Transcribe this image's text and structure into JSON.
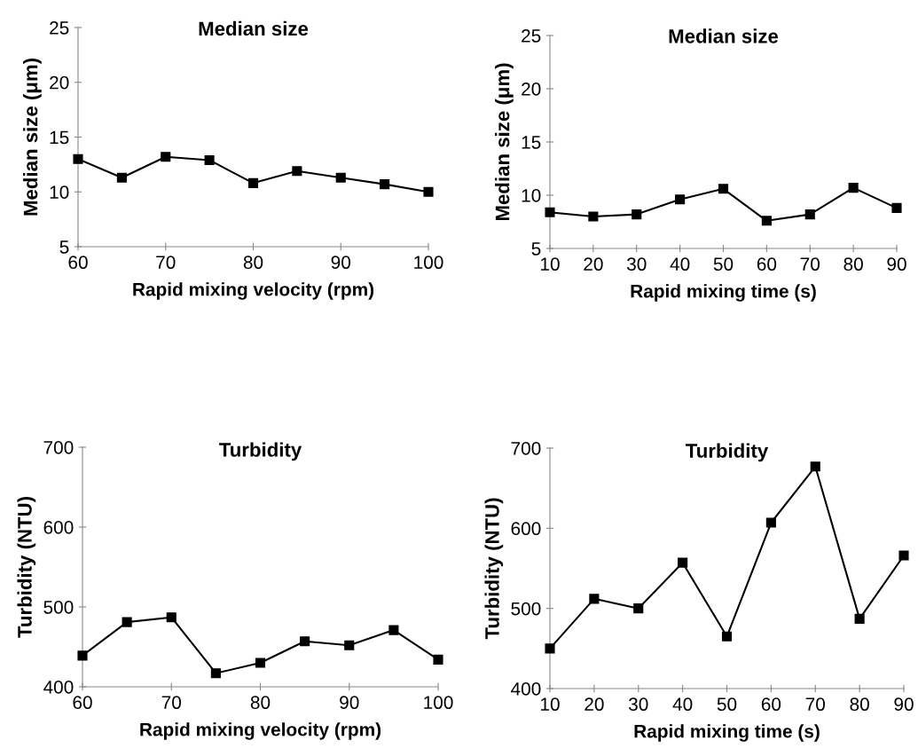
{
  "chart_data": [
    {
      "type": "line",
      "title": "Median size",
      "xlabel": "Rapid mixing velocity (rpm)",
      "ylabel": "Median size (μm)",
      "x": [
        60,
        65,
        70,
        75,
        80,
        85,
        90,
        95,
        100
      ],
      "series": [
        {
          "color": "#000000",
          "values": [
            13.0,
            11.3,
            13.2,
            12.9,
            10.8,
            11.9,
            11.3,
            10.7,
            10.0
          ]
        }
      ],
      "xlim": [
        60,
        100
      ],
      "xticks": [
        60,
        70,
        80,
        90,
        100
      ],
      "ylim": [
        5,
        25
      ],
      "yticks": [
        5,
        10,
        15,
        20,
        25
      ],
      "marker": "square",
      "line_style": "solid",
      "grid": false
    },
    {
      "type": "line",
      "title": "Median size",
      "xlabel": "Rapid mixing time (s)",
      "ylabel": "Median size (μm)",
      "x": [
        10,
        20,
        30,
        40,
        50,
        60,
        70,
        80,
        90
      ],
      "series": [
        {
          "color": "#000000",
          "values": [
            8.4,
            8.0,
            8.2,
            9.6,
            10.6,
            7.6,
            8.2,
            10.7,
            8.8
          ]
        }
      ],
      "xlim": [
        10,
        90
      ],
      "xticks": [
        10,
        20,
        30,
        40,
        50,
        60,
        70,
        80,
        90
      ],
      "ylim": [
        5,
        25
      ],
      "yticks": [
        5,
        10,
        15,
        20,
        25
      ],
      "marker": "square",
      "line_style": "solid",
      "grid": false
    },
    {
      "type": "line",
      "title": "Turbidity",
      "xlabel": "Rapid mixing velocity (rpm)",
      "ylabel": "Turbidity (NTU)",
      "x": [
        60,
        65,
        70,
        75,
        80,
        85,
        90,
        95,
        100
      ],
      "series": [
        {
          "color": "#000000",
          "values": [
            439,
            481,
            487,
            417,
            430,
            457,
            452,
            471,
            434
          ]
        }
      ],
      "xlim": [
        60,
        100
      ],
      "xticks": [
        60,
        70,
        80,
        90,
        100
      ],
      "ylim": [
        400,
        700
      ],
      "yticks": [
        400,
        500,
        600,
        700
      ],
      "marker": "square",
      "line_style": "solid",
      "grid": false
    },
    {
      "type": "line",
      "title": "Turbidity",
      "xlabel": "Rapid mixing time (s)",
      "ylabel": "Turbidity (NTU)",
      "x": [
        10,
        20,
        30,
        40,
        50,
        60,
        70,
        80,
        90
      ],
      "series": [
        {
          "color": "#000000",
          "values": [
            450,
            512,
            500,
            557,
            465,
            607,
            677,
            487,
            566
          ]
        }
      ],
      "xlim": [
        10,
        90
      ],
      "xticks": [
        10,
        20,
        30,
        40,
        50,
        60,
        70,
        80,
        90
      ],
      "ylim": [
        400,
        700
      ],
      "yticks": [
        400,
        500,
        600,
        700
      ],
      "marker": "square",
      "line_style": "solid",
      "grid": false
    }
  ]
}
